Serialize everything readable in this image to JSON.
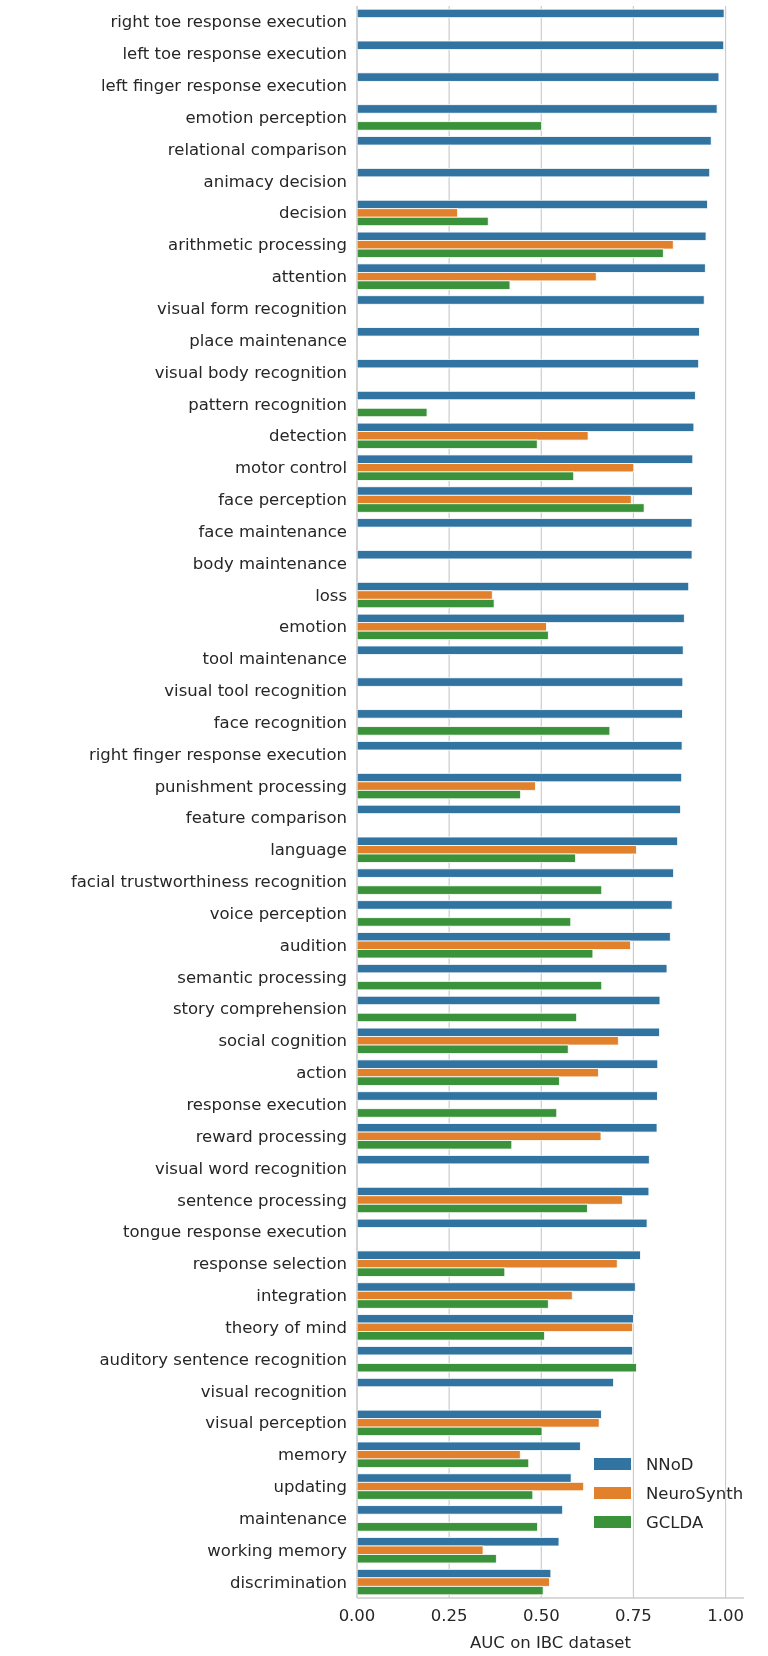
{
  "chart_data": {
    "type": "bar",
    "orientation": "horizontal",
    "xlabel": "AUC on IBC dataset",
    "categories": [
      "right toe response execution",
      "left toe response execution",
      "left finger response execution",
      "emotion perception",
      "relational comparison",
      "animacy decision",
      "decision",
      "arithmetic processing",
      "attention",
      "visual form recognition",
      "place maintenance",
      "visual body recognition",
      "pattern recognition",
      "detection",
      "motor control",
      "face perception",
      "face maintenance",
      "body maintenance",
      "loss",
      "emotion",
      "tool maintenance",
      "visual tool recognition",
      "face recognition",
      "right finger response execution",
      "punishment processing",
      "feature comparison",
      "language",
      "facial trustworthiness recognition",
      "voice perception",
      "audition",
      "semantic processing",
      "story comprehension",
      "social cognition",
      "action",
      "response execution",
      "reward processing",
      "visual word recognition",
      "sentence processing",
      "tongue response execution",
      "response selection",
      "integration",
      "theory of mind",
      "auditory sentence recognition",
      "visual recognition",
      "visual perception",
      "memory",
      "updating",
      "maintenance",
      "working memory",
      "discrimination"
    ],
    "series": [
      {
        "name": "NNoD",
        "color": "#3274a1",
        "values": [
          0.996,
          0.995,
          0.982,
          0.977,
          0.961,
          0.957,
          0.951,
          0.947,
          0.945,
          0.942,
          0.929,
          0.927,
          0.918,
          0.914,
          0.911,
          0.91,
          0.909,
          0.909,
          0.9,
          0.888,
          0.885,
          0.884,
          0.883,
          0.882,
          0.881,
          0.878,
          0.87,
          0.859,
          0.855,
          0.85,
          0.841,
          0.822,
          0.821,
          0.816,
          0.815,
          0.814,
          0.793,
          0.792,
          0.787,
          0.769,
          0.755,
          0.75,
          0.748,
          0.696,
          0.663,
          0.606,
          0.581,
          0.558,
          0.548,
          0.526
        ]
      },
      {
        "name": "NeuroSynth",
        "color": "#e1812c",
        "values": [
          null,
          null,
          null,
          null,
          null,
          null,
          0.273,
          0.858,
          0.649,
          null,
          null,
          null,
          null,
          0.627,
          0.751,
          0.744,
          null,
          null,
          0.367,
          0.514,
          null,
          null,
          null,
          null,
          0.484,
          null,
          0.758,
          null,
          null,
          0.742,
          null,
          null,
          0.709,
          0.655,
          null,
          0.662,
          null,
          0.72,
          null,
          0.706,
          0.584,
          0.748,
          null,
          null,
          0.657,
          0.443,
          0.615,
          null,
          0.342,
          0.522
        ]
      },
      {
        "name": "GCLDA",
        "color": "#3a923a",
        "values": [
          null,
          null,
          null,
          0.501,
          null,
          null,
          0.356,
          0.831,
          0.415,
          null,
          null,
          null,
          0.19,
          0.489,
          0.588,
          0.779,
          null,
          null,
          0.372,
          0.519,
          null,
          null,
          0.686,
          null,
          0.444,
          null,
          0.593,
          0.664,
          0.58,
          0.64,
          0.664,
          0.596,
          0.573,
          0.549,
          0.542,
          0.42,
          null,
          0.625,
          null,
          0.401,
          0.519,
          0.509,
          0.758,
          null,
          0.502,
          0.466,
          0.477,
          0.49,
          0.378,
          0.505
        ]
      }
    ],
    "xlim": [
      0,
      1.05
    ],
    "xticks": [
      {
        "value": 0,
        "label": "0.00"
      },
      {
        "value": 0.25,
        "label": "0.25"
      },
      {
        "value": 0.5,
        "label": "0.50"
      },
      {
        "value": 0.75,
        "label": "0.75"
      },
      {
        "value": 1,
        "label": "1.00"
      }
    ],
    "grid": "x",
    "legend": "bottom right"
  }
}
